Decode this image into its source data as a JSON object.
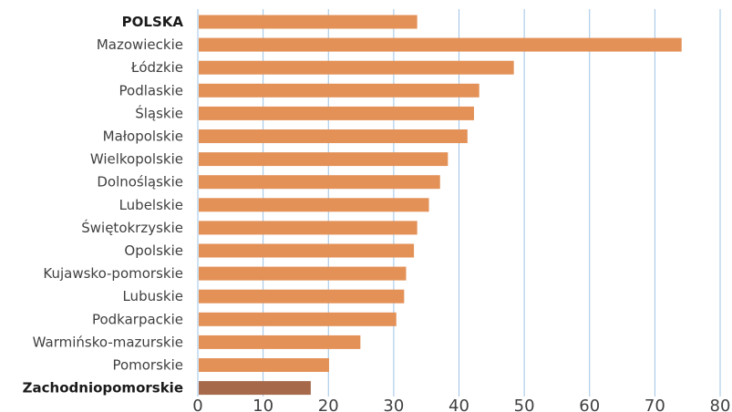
{
  "chart_data": {
    "type": "bar",
    "orientation": "horizontal",
    "title": "",
    "xlabel": "",
    "ylabel": "",
    "xlim": [
      0,
      80
    ],
    "xticks": [
      0,
      10,
      20,
      30,
      40,
      50,
      60,
      70,
      80
    ],
    "grid": true,
    "legend": "none",
    "categories": [
      "POLSKA",
      "Mazowieckie",
      "Łódzkie",
      "Podlaskie",
      "Śląskie",
      "Małopolskie",
      "Wielkopolskie",
      "Dolnośląskie",
      "Lubelskie",
      "Świętokrzyskie",
      "Opolskie",
      "Kujawsko-pomorskie",
      "Lubuskie",
      "Podkarpackie",
      "Warmińsko-mazurskie",
      "Pomorskie",
      "Zachodniopomorskie"
    ],
    "bold_categories": [
      "POLSKA",
      "Zachodniopomorskie"
    ],
    "values": [
      33.6,
      74.1,
      48.4,
      43.1,
      42.3,
      41.3,
      38.3,
      37.1,
      35.4,
      33.6,
      33.1,
      31.9,
      31.6,
      30.4,
      24.9,
      20.1,
      17.3
    ],
    "colors": {
      "bar": "#E39157",
      "highlight_bar": "#A6694A",
      "highlight_category": "Zachodniopomorskie",
      "grid": "#9DC3E6"
    }
  }
}
